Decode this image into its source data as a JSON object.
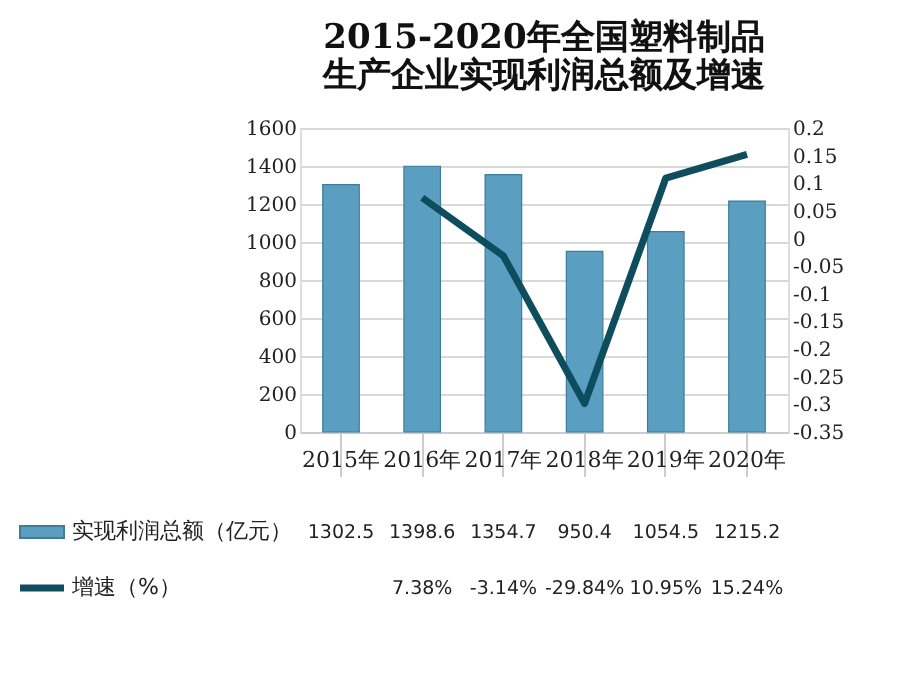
{
  "chart_data": {
    "type": "bar",
    "title": "2015-2020年全国塑料制品生产企业实现利润总额及增速",
    "categories": [
      "2015年",
      "2016年",
      "2017年",
      "2018年",
      "2019年",
      "2020年"
    ],
    "series": [
      {
        "name": "实现利润总额（亿元）",
        "color": "#5a9ec2",
        "values": [
          1302.5,
          1398.6,
          1354.7,
          950.4,
          1054.5,
          1215.2
        ],
        "value_labels": [
          "1302.5",
          "1398.6",
          "1354.7",
          "950.4",
          "1054.5",
          "1215.2"
        ]
      },
      {
        "name": "增速（%）",
        "type": "line",
        "axis": "y2",
        "color": "#0e4d5e",
        "values": [
          null,
          0.0738,
          -0.0314,
          -0.2984,
          0.1095,
          0.1524
        ],
        "value_labels": [
          null,
          "7.38%",
          "-3.14%",
          "-29.84%",
          "10.95%",
          "15.24%"
        ]
      }
    ],
    "ylim": [
      0,
      1600
    ],
    "yticks": [
      0,
      200,
      400,
      600,
      800,
      1000,
      1200,
      1400,
      1600
    ],
    "y2lim": [
      -0.35,
      0.2
    ],
    "y2ticks": [
      -0.35,
      -0.3,
      -0.25,
      -0.2,
      -0.15,
      -0.1,
      -0.05,
      0,
      0.05,
      0.1,
      0.15,
      0.2
    ],
    "grid": "y",
    "legend": "bottom",
    "marker": "none",
    "line_style": "solid"
  }
}
